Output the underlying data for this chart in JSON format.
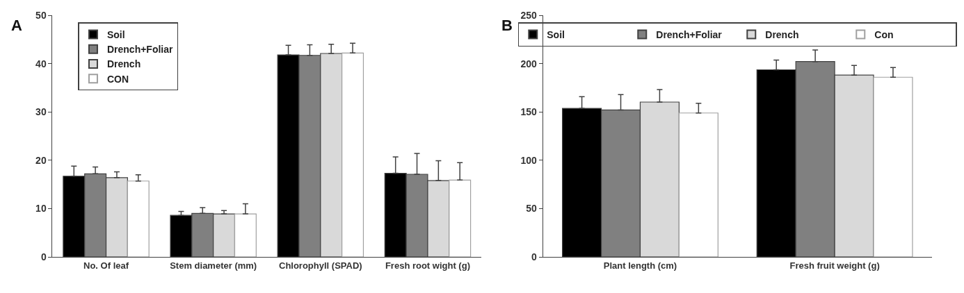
{
  "chart_data": [
    {
      "type": "bar",
      "annotations": [
        "A"
      ],
      "categories": [
        "No. Of leaf",
        "Stem diameter (mm)",
        "Chlorophyll (SPAD)",
        "Fresh root wight (g)"
      ],
      "ylim": [
        0,
        50
      ],
      "yticks": [
        0,
        10,
        20,
        30,
        40,
        50
      ],
      "legend": "top left",
      "series": [
        {
          "name": "Soil",
          "color": "#000000",
          "values": [
            16.7,
            8.6,
            41.8,
            17.3
          ],
          "errors": [
            2.1,
            0.8,
            2.0,
            3.4
          ]
        },
        {
          "name": "Drench+Foliar",
          "color": "#808080",
          "values": [
            17.2,
            9.0,
            41.7,
            17.1
          ],
          "errors": [
            1.4,
            1.2,
            2.2,
            4.3
          ]
        },
        {
          "name": "Drench",
          "color": "#d9d9d9",
          "values": [
            16.4,
            8.9,
            42.1,
            15.8
          ],
          "errors": [
            1.2,
            0.7,
            1.9,
            4.1
          ]
        },
        {
          "name": "CON",
          "color": "#ffffff",
          "values": [
            15.7,
            8.9,
            42.2,
            15.9
          ],
          "errors": [
            1.3,
            2.1,
            2.0,
            3.6
          ]
        }
      ]
    },
    {
      "type": "bar",
      "annotations": [
        "B"
      ],
      "categories": [
        "Plant length (cm)",
        "Fresh fruit weight (g)"
      ],
      "ylim": [
        0,
        250
      ],
      "yticks": [
        0,
        50,
        100,
        150,
        200,
        250
      ],
      "legend": "top",
      "series": [
        {
          "name": "Soil",
          "color": "#000000",
          "values": [
            153.7,
            193.6
          ],
          "errors": [
            12,
            10
          ]
        },
        {
          "name": "Drench+Foliar",
          "color": "#808080",
          "values": [
            152,
            202.1
          ],
          "errors": [
            16,
            12
          ]
        },
        {
          "name": "Drench",
          "color": "#d9d9d9",
          "values": [
            160.2,
            188.1
          ],
          "errors": [
            13,
            10
          ]
        },
        {
          "name": "Con",
          "color": "#ffffff",
          "values": [
            148.9,
            185.9
          ],
          "errors": [
            10,
            10
          ]
        }
      ]
    }
  ]
}
